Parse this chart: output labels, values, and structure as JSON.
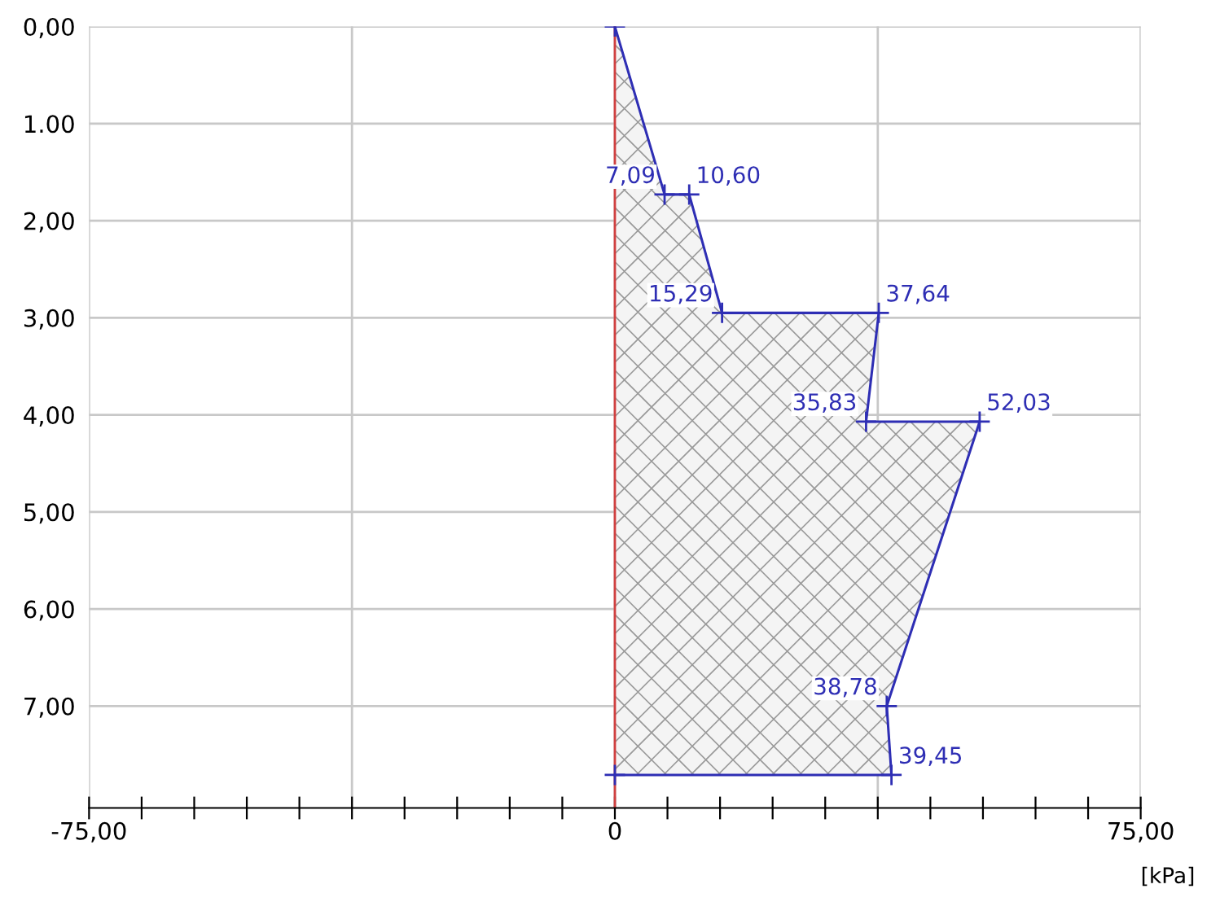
{
  "chart_data": {
    "type": "area",
    "xlabel": "[kPa]",
    "series": [
      {
        "color": "#2e2eb4",
        "x": [
          0,
          7.09,
          10.6,
          15.29,
          37.64,
          35.83,
          52.03,
          38.78,
          39.45,
          0
        ],
        "values": [
          0,
          1.73,
          1.73,
          2.95,
          2.95,
          4.07,
          4.07,
          7.0,
          7.71,
          7.71
        ]
      }
    ],
    "annotations": [
      {
        "text": "7,09",
        "x": 7.09,
        "y": 1.73
      },
      {
        "text": "10,60",
        "x": 10.6,
        "y": 1.73
      },
      {
        "text": "15,29",
        "x": 15.29,
        "y": 2.95
      },
      {
        "text": "37,64",
        "x": 37.64,
        "y": 2.95
      },
      {
        "text": "35,83",
        "x": 35.83,
        "y": 4.07
      },
      {
        "text": "52,03",
        "x": 52.03,
        "y": 4.07
      },
      {
        "text": "38,78",
        "x": 38.78,
        "y": 7.0
      },
      {
        "text": "39,45",
        "x": 39.45,
        "y": 7.71
      }
    ],
    "marker": "cross",
    "xlim": [
      -75,
      75
    ],
    "xticks": [
      {
        "value": -75,
        "label": "-75,00"
      },
      {
        "value": -67.5,
        "label": null
      },
      {
        "value": -60,
        "label": null
      },
      {
        "value": -52.5,
        "label": null
      },
      {
        "value": -45,
        "label": null
      },
      {
        "value": -37.5,
        "label": null
      },
      {
        "value": -30,
        "label": null
      },
      {
        "value": -22.5,
        "label": null
      },
      {
        "value": -15,
        "label": null
      },
      {
        "value": -7.5,
        "label": null
      },
      {
        "value": 0,
        "label": "0"
      },
      {
        "value": 7.5,
        "label": null
      },
      {
        "value": 15,
        "label": null
      },
      {
        "value": 22.5,
        "label": null
      },
      {
        "value": 30,
        "label": null
      },
      {
        "value": 37.5,
        "label": null
      },
      {
        "value": 45,
        "label": null
      },
      {
        "value": 52.5,
        "label": null
      },
      {
        "value": 60,
        "label": null
      },
      {
        "value": 67.5,
        "label": null
      },
      {
        "value": 75,
        "label": "75,00"
      }
    ],
    "ylim": [
      8.05,
      0
    ],
    "yticks": [
      {
        "value": 0,
        "label": "0,00"
      },
      {
        "value": 1,
        "label": "1.00"
      },
      {
        "value": 2,
        "label": "2,00"
      },
      {
        "value": 3,
        "label": "3,00"
      },
      {
        "value": 4,
        "label": "4,00"
      },
      {
        "value": 5,
        "label": "5,00"
      },
      {
        "value": 6,
        "label": "6,00"
      },
      {
        "value": 7,
        "label": "7,00"
      }
    ],
    "ref_lines": [
      {
        "axis": "x",
        "value": 0,
        "label": null,
        "color": "#d04040"
      }
    ],
    "grid": true
  }
}
